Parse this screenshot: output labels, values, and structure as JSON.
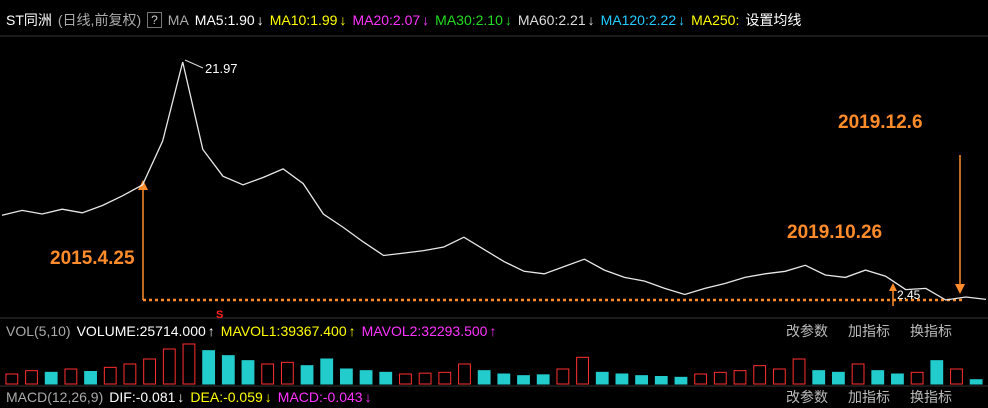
{
  "header": {
    "title": "ST同洲",
    "subtitle": "(日线,前复权)",
    "help": "?",
    "ma": "MA",
    "items": [
      {
        "text": "MA5:1.90",
        "arrow": "↓",
        "color": "#ffffff"
      },
      {
        "text": "MA10:1.99",
        "arrow": "↓",
        "color": "#ffff00"
      },
      {
        "text": "MA20:2.07",
        "arrow": "↓",
        "color": "#ff33ff"
      },
      {
        "text": "MA30:2.10",
        "arrow": "↓",
        "color": "#22dd22"
      },
      {
        "text": "MA60:2.21",
        "arrow": "↓",
        "color": "#dddddd"
      },
      {
        "text": "MA120:2.22",
        "arrow": "↓",
        "color": "#22ccff"
      },
      {
        "text": "MA250:",
        "arrow": "",
        "color": "#ffff00"
      }
    ],
    "settings": "设置均线"
  },
  "price": [
    9.4,
    9.8,
    9.5,
    9.9,
    9.6,
    10.2,
    11.0,
    11.9,
    15.5,
    21.97,
    14.8,
    12.6,
    11.9,
    12.5,
    13.2,
    12.0,
    9.5,
    8.4,
    7.2,
    6.1,
    6.3,
    6.5,
    6.8,
    7.6,
    6.6,
    5.6,
    4.8,
    4.6,
    5.2,
    5.8,
    4.9,
    4.3,
    4.0,
    3.4,
    2.9,
    3.4,
    3.8,
    4.3,
    4.6,
    4.8,
    5.3,
    4.5,
    4.3,
    4.9,
    4.4,
    3.3,
    3.4,
    2.45,
    2.7,
    2.5
  ],
  "annotations": {
    "peak": "21.97",
    "low": "2.45",
    "start": "2015.4.25",
    "mid": "2019.10.26",
    "end": "2019.12.6",
    "marker": "S"
  },
  "volume_panel": {
    "label": "VOL(5,10)",
    "items": [
      {
        "text": "VOLUME:25714.000",
        "arrow": "↑",
        "color": "#ffffff"
      },
      {
        "text": "MAVOL1:39367.400",
        "arrow": "↑",
        "color": "#ffff00"
      },
      {
        "text": "MAVOL2:32293.500",
        "arrow": "↑",
        "color": "#ff33ff"
      }
    ],
    "buttons": [
      "改参数",
      "加指标",
      "换指标"
    ],
    "volume": [
      60000,
      80000,
      70000,
      90000,
      75000,
      100000,
      120000,
      150000,
      210000,
      240000,
      200000,
      170000,
      140000,
      120000,
      130000,
      110000,
      150000,
      90000,
      80000,
      70000,
      60000,
      65000,
      70000,
      120000,
      80000,
      60000,
      50000,
      55000,
      90000,
      160000,
      70000,
      60000,
      50000,
      45000,
      40000,
      60000,
      70000,
      80000,
      110000,
      90000,
      150000,
      80000,
      70000,
      120000,
      80000,
      60000,
      70000,
      140000,
      90000,
      25714
    ]
  },
  "macd_panel": {
    "label": "MACD(12,26,9)",
    "items": [
      {
        "text": "DIF:-0.081",
        "arrow": "↓",
        "color": "#ffffff"
      },
      {
        "text": "DEA:-0.059",
        "arrow": "↓",
        "color": "#ffff00"
      },
      {
        "text": "MACD:-0.043",
        "arrow": "↓",
        "color": "#ff33ff"
      }
    ],
    "buttons": [
      "改参数",
      "加指标",
      "换指标"
    ]
  }
}
